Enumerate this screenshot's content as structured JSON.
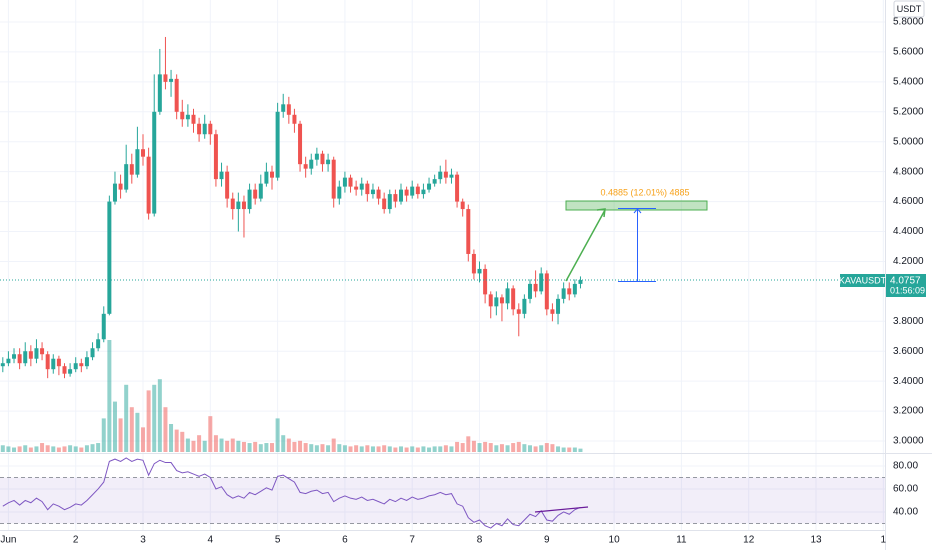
{
  "chart_data": {
    "type": "candlestick",
    "symbol": "KAVAUSDT",
    "currency": "USDT",
    "countdown": "01:56:09",
    "measure_label": "0.4885 (12.01%) 4885",
    "up_color": "#26a69a",
    "down_color": "#ef5350",
    "rsi_color": "#7e57c2",
    "grid": true,
    "xlim": [
      -0.5,
      157.3
    ],
    "xticks": [
      {
        "value": 1,
        "label": "Jun"
      },
      {
        "value": 13,
        "label": "2"
      },
      {
        "value": 25,
        "label": "3"
      },
      {
        "value": 37,
        "label": "4"
      },
      {
        "value": 49,
        "label": "5"
      },
      {
        "value": 61,
        "label": "6"
      },
      {
        "value": 73,
        "label": "7"
      },
      {
        "value": 85,
        "label": "8"
      },
      {
        "value": 97,
        "label": "9"
      },
      {
        "value": 109,
        "label": "10"
      },
      {
        "value": 121,
        "label": "11"
      },
      {
        "value": 133,
        "label": "12"
      },
      {
        "value": 145,
        "label": "13"
      },
      {
        "value": 157,
        "label": "1"
      }
    ],
    "ylim": [
      2.92,
      5.947
    ],
    "yticks": [
      {
        "value": 5.8,
        "label": "5.8000"
      },
      {
        "value": 5.6,
        "label": "5.6000"
      },
      {
        "value": 5.4,
        "label": "5.4000"
      },
      {
        "value": 5.2,
        "label": "5.2000"
      },
      {
        "value": 5.0,
        "label": "5.0000"
      },
      {
        "value": 4.8,
        "label": "4.8000"
      },
      {
        "value": 4.6,
        "label": "4.6000"
      },
      {
        "value": 4.4,
        "label": "4.4000"
      },
      {
        "value": 4.2,
        "label": "4.2000"
      },
      {
        "value": 3.8,
        "label": "3.8000"
      },
      {
        "value": 3.6,
        "label": "3.6000"
      },
      {
        "value": 3.4,
        "label": "3.4000"
      },
      {
        "value": 3.2,
        "label": "3.2000"
      },
      {
        "value": 3.0,
        "label": "3.0000"
      }
    ],
    "rsi_ylim": [
      24.3,
      88.7
    ],
    "rsi_yticks": [
      {
        "value": 80,
        "label": "80.00"
      },
      {
        "value": 60,
        "label": "60.00"
      },
      {
        "value": 40,
        "label": "40.00"
      }
    ],
    "rsi_bands": [
      30,
      70
    ],
    "candles": [
      [
        3.5,
        3.56,
        3.46,
        3.52
      ],
      [
        3.52,
        3.6,
        3.5,
        3.55
      ],
      [
        3.55,
        3.62,
        3.52,
        3.58
      ],
      [
        3.58,
        3.62,
        3.48,
        3.52
      ],
      [
        3.52,
        3.66,
        3.5,
        3.6
      ],
      [
        3.6,
        3.64,
        3.5,
        3.55
      ],
      [
        3.55,
        3.68,
        3.52,
        3.62
      ],
      [
        3.62,
        3.66,
        3.54,
        3.58
      ],
      [
        3.58,
        3.6,
        3.42,
        3.48
      ],
      [
        3.48,
        3.58,
        3.45,
        3.55
      ],
      [
        3.55,
        3.57,
        3.44,
        3.5
      ],
      [
        3.5,
        3.52,
        3.42,
        3.45
      ],
      [
        3.45,
        3.52,
        3.43,
        3.48
      ],
      [
        3.48,
        3.56,
        3.46,
        3.52
      ],
      [
        3.52,
        3.55,
        3.46,
        3.5
      ],
      [
        3.5,
        3.6,
        3.48,
        3.56
      ],
      [
        3.56,
        3.66,
        3.54,
        3.62
      ],
      [
        3.62,
        3.72,
        3.6,
        3.68
      ],
      [
        3.68,
        3.9,
        3.66,
        3.85
      ],
      [
        3.85,
        4.64,
        3.84,
        4.6
      ],
      [
        4.6,
        4.8,
        4.58,
        4.72
      ],
      [
        4.72,
        4.78,
        4.62,
        4.68
      ],
      [
        4.68,
        4.98,
        4.66,
        4.85
      ],
      [
        4.85,
        4.92,
        4.72,
        4.78
      ],
      [
        4.78,
        5.1,
        4.76,
        4.95
      ],
      [
        4.95,
        5.05,
        4.84,
        4.9
      ],
      [
        4.9,
        4.96,
        4.48,
        4.52
      ],
      [
        4.52,
        5.45,
        4.5,
        5.2
      ],
      [
        5.2,
        5.62,
        5.18,
        5.45
      ],
      [
        5.45,
        5.7,
        5.35,
        5.4
      ],
      [
        5.4,
        5.48,
        5.3,
        5.42
      ],
      [
        5.42,
        5.45,
        5.15,
        5.2
      ],
      [
        5.2,
        5.28,
        5.1,
        5.15
      ],
      [
        5.15,
        5.25,
        5.1,
        5.18
      ],
      [
        5.18,
        5.22,
        5.06,
        5.12
      ],
      [
        5.12,
        5.16,
        5.0,
        5.05
      ],
      [
        5.05,
        5.18,
        5.02,
        5.12
      ],
      [
        5.12,
        5.14,
        4.98,
        5.05
      ],
      [
        5.05,
        5.08,
        4.7,
        4.75
      ],
      [
        4.75,
        4.86,
        4.7,
        4.8
      ],
      [
        4.8,
        4.84,
        4.56,
        4.62
      ],
      [
        4.62,
        4.66,
        4.48,
        4.55
      ],
      [
        4.55,
        4.66,
        4.4,
        4.6
      ],
      [
        4.6,
        4.64,
        4.36,
        4.55
      ],
      [
        4.55,
        4.72,
        4.52,
        4.68
      ],
      [
        4.68,
        4.72,
        4.58,
        4.62
      ],
      [
        4.62,
        4.78,
        4.6,
        4.72
      ],
      [
        4.72,
        4.86,
        4.7,
        4.8
      ],
      [
        4.8,
        4.84,
        4.68,
        4.76
      ],
      [
        4.76,
        5.26,
        4.74,
        5.2
      ],
      [
        5.2,
        5.32,
        5.16,
        5.25
      ],
      [
        5.25,
        5.3,
        5.12,
        5.18
      ],
      [
        5.18,
        5.22,
        5.06,
        5.12
      ],
      [
        5.12,
        5.14,
        4.8,
        4.85
      ],
      [
        4.85,
        4.9,
        4.76,
        4.82
      ],
      [
        4.82,
        4.92,
        4.78,
        4.88
      ],
      [
        4.88,
        4.96,
        4.84,
        4.92
      ],
      [
        4.92,
        4.94,
        4.8,
        4.85
      ],
      [
        4.85,
        4.92,
        4.8,
        4.88
      ],
      [
        4.88,
        4.9,
        4.56,
        4.62
      ],
      [
        4.62,
        4.74,
        4.58,
        4.7
      ],
      [
        4.7,
        4.8,
        4.66,
        4.76
      ],
      [
        4.76,
        4.78,
        4.66,
        4.7
      ],
      [
        4.7,
        4.74,
        4.64,
        4.68
      ],
      [
        4.68,
        4.76,
        4.64,
        4.72
      ],
      [
        4.72,
        4.74,
        4.6,
        4.65
      ],
      [
        4.65,
        4.72,
        4.62,
        4.68
      ],
      [
        4.68,
        4.7,
        4.58,
        4.62
      ],
      [
        4.62,
        4.66,
        4.52,
        4.55
      ],
      [
        4.55,
        4.68,
        4.52,
        4.65
      ],
      [
        4.65,
        4.68,
        4.56,
        4.6
      ],
      [
        4.6,
        4.72,
        4.58,
        4.68
      ],
      [
        4.68,
        4.7,
        4.6,
        4.64
      ],
      [
        4.64,
        4.74,
        4.62,
        4.7
      ],
      [
        4.7,
        4.72,
        4.62,
        4.65
      ],
      [
        4.65,
        4.72,
        4.62,
        4.68
      ],
      [
        4.68,
        4.76,
        4.66,
        4.72
      ],
      [
        4.72,
        4.78,
        4.7,
        4.75
      ],
      [
        4.75,
        4.84,
        4.72,
        4.8
      ],
      [
        4.8,
        4.88,
        4.72,
        4.76
      ],
      [
        4.76,
        4.82,
        4.72,
        4.78
      ],
      [
        4.78,
        4.8,
        4.56,
        4.6
      ],
      [
        4.6,
        4.62,
        4.5,
        4.55
      ],
      [
        4.55,
        4.58,
        4.2,
        4.25
      ],
      [
        4.25,
        4.28,
        4.08,
        4.12
      ],
      [
        4.12,
        4.2,
        4.06,
        4.15
      ],
      [
        4.15,
        4.18,
        3.92,
        3.98
      ],
      [
        3.98,
        4.0,
        3.82,
        3.9
      ],
      [
        3.9,
        4.0,
        3.84,
        3.96
      ],
      [
        3.96,
        3.98,
        3.8,
        3.92
      ],
      [
        3.92,
        4.06,
        3.88,
        4.02
      ],
      [
        4.02,
        4.04,
        3.84,
        3.88
      ],
      [
        3.88,
        3.92,
        3.7,
        3.85
      ],
      [
        3.85,
        3.98,
        3.82,
        3.95
      ],
      [
        3.95,
        4.08,
        3.92,
        4.05
      ],
      [
        4.05,
        4.14,
        3.96,
        4.0
      ],
      [
        4.0,
        4.16,
        3.98,
        4.12
      ],
      [
        4.12,
        4.14,
        3.84,
        3.88
      ],
      [
        3.88,
        3.92,
        3.8,
        3.85
      ],
      [
        3.85,
        3.98,
        3.78,
        3.95
      ],
      [
        3.95,
        4.06,
        3.92,
        4.02
      ],
      [
        4.02,
        4.06,
        3.94,
        3.98
      ],
      [
        3.98,
        4.08,
        3.96,
        4.05
      ],
      [
        4.05,
        4.1,
        4.02,
        4.0757
      ]
    ],
    "volume": [
      6,
      5,
      4,
      5,
      6,
      4,
      5,
      8,
      6,
      5,
      4,
      5,
      6,
      5,
      4,
      6,
      7,
      8,
      30,
      100,
      45,
      30,
      60,
      40,
      35,
      22,
      55,
      60,
      65,
      40,
      25,
      20,
      18,
      12,
      10,
      15,
      10,
      32,
      15,
      12,
      10,
      12,
      10,
      9,
      8,
      9,
      7,
      8,
      8,
      30,
      15,
      12,
      9,
      10,
      8,
      7,
      6,
      7,
      6,
      12,
      7,
      6,
      5,
      6,
      5,
      6,
      5,
      5,
      6,
      5,
      4,
      5,
      4,
      5,
      4,
      5,
      4,
      5,
      5,
      6,
      5,
      9,
      8,
      14,
      10,
      8,
      9,
      8,
      6,
      7,
      6,
      8,
      9,
      7,
      6,
      5,
      6,
      8,
      7,
      5,
      4,
      4,
      4,
      3
    ],
    "rsi": [
      45,
      48,
      50,
      46,
      50,
      48,
      52,
      49,
      42,
      47,
      45,
      42,
      44,
      47,
      46,
      50,
      55,
      60,
      66,
      84,
      86,
      84,
      87,
      84,
      86,
      85,
      72,
      82,
      85,
      83,
      83,
      76,
      74,
      75,
      73,
      71,
      73,
      70,
      60,
      62,
      55,
      52,
      54,
      52,
      57,
      55,
      58,
      61,
      59,
      71,
      72,
      69,
      66,
      57,
      56,
      58,
      59,
      56,
      57,
      49,
      52,
      54,
      52,
      51,
      53,
      50,
      51,
      49,
      47,
      51,
      49,
      52,
      50,
      53,
      51,
      52,
      54,
      55,
      57,
      55,
      56,
      47,
      45,
      35,
      31,
      33,
      28,
      26,
      30,
      28,
      34,
      29,
      28,
      33,
      38,
      36,
      41,
      33,
      32,
      37,
      40,
      38,
      42,
      44
    ]
  }
}
